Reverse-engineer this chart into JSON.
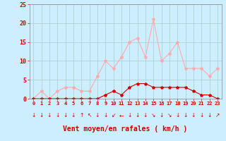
{
  "hours": [
    0,
    1,
    2,
    3,
    4,
    5,
    6,
    7,
    8,
    9,
    10,
    11,
    12,
    13,
    14,
    15,
    16,
    17,
    18,
    19,
    20,
    21,
    22,
    23
  ],
  "rafales": [
    0,
    2,
    0,
    2,
    3,
    3,
    2,
    2,
    6,
    10,
    8,
    11,
    15,
    16,
    11,
    21,
    10,
    12,
    15,
    8,
    8,
    8,
    6,
    8
  ],
  "vent_moyen": [
    0,
    0,
    0,
    0,
    0,
    0,
    0,
    0,
    0,
    1,
    2,
    1,
    3,
    4,
    4,
    3,
    3,
    3,
    3,
    3,
    2,
    1,
    1,
    0
  ],
  "rafales_color": "#ffaaaa",
  "vent_moyen_color": "#cc0000",
  "background_color": "#cceeff",
  "grid_color": "#aacccc",
  "xlabel": "Vent moyen/en rafales ( km/h )",
  "xlabel_color": "#cc0000",
  "tick_color": "#cc0000",
  "ylim": [
    0,
    25
  ],
  "yticks": [
    0,
    5,
    10,
    15,
    20,
    25
  ],
  "ytick_labels": [
    "0",
    "5",
    "10",
    "15",
    "20",
    "25"
  ],
  "marker": "*",
  "marker_size": 3,
  "line_width": 0.8,
  "wind_dirs": [
    "↓",
    "↓",
    "↓",
    "↓",
    "↓",
    "↓",
    "↑",
    "↖",
    "↓",
    "↓",
    "↙",
    "←",
    "↓",
    "↓",
    "↓",
    "↘",
    "↓",
    "↘",
    "↓",
    "↓",
    "↓",
    "↓",
    "↓",
    "↗"
  ]
}
